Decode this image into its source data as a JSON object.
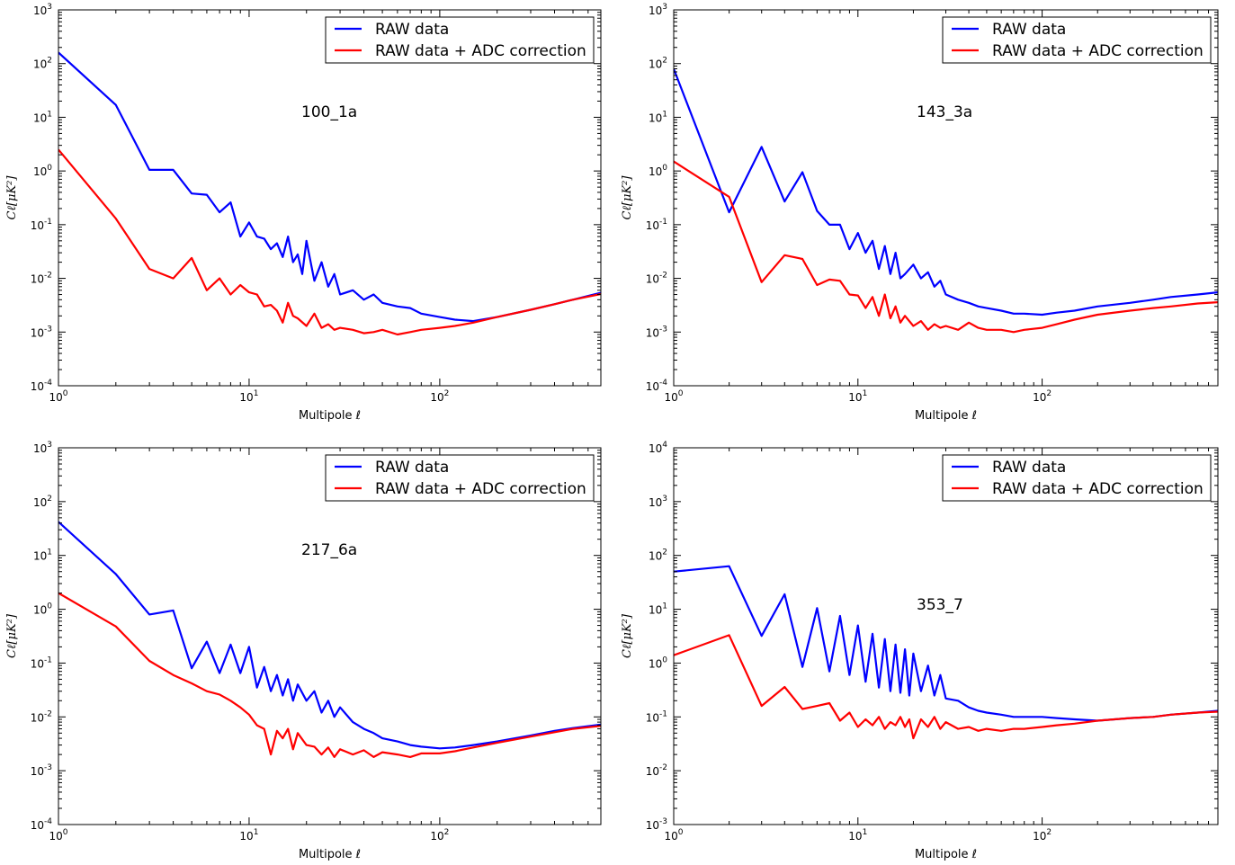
{
  "figure": {
    "series_colors": {
      "raw": "#0000ff",
      "adc": "#ff0000"
    }
  },
  "chart_data": [
    {
      "type": "line",
      "annotation": "100_1a",
      "xlabel": "Multipole ℓ",
      "ylabel": "Cℓ[μK²]",
      "xscale": "log",
      "yscale": "log",
      "xlim": [
        1,
        700
      ],
      "ylim": [
        0.0001,
        1000
      ],
      "xticks": [
        1,
        10,
        100
      ],
      "xtick_labels": [
        [
          "10",
          "0"
        ],
        [
          "10",
          "1"
        ],
        [
          "10",
          "2"
        ]
      ],
      "yticks": [
        0.0001,
        0.001,
        0.01,
        0.1,
        1,
        10,
        100,
        1000
      ],
      "ytick_labels": [
        [
          "10",
          "-4"
        ],
        [
          "10",
          "-3"
        ],
        [
          "10",
          "-2"
        ],
        [
          "10",
          "-1"
        ],
        [
          "10",
          "0"
        ],
        [
          "10",
          "1"
        ],
        [
          "10",
          "2"
        ],
        [
          "10",
          "3"
        ]
      ],
      "legend": {
        "position": "top-right",
        "entries": [
          "RAW data",
          "RAW data + ADC correction"
        ]
      },
      "series": [
        {
          "name": "RAW data",
          "color": "#0000ff",
          "x": [
            1,
            2,
            3,
            4,
            5,
            6,
            7,
            8,
            9,
            10,
            11,
            12,
            13,
            14,
            15,
            16,
            17,
            18,
            19,
            20,
            22,
            24,
            26,
            28,
            30,
            35,
            40,
            45,
            50,
            60,
            70,
            80,
            100,
            120,
            150,
            200,
            300,
            400,
            500,
            700
          ],
          "y": [
            160,
            17,
            1.05,
            1.05,
            0.38,
            0.36,
            0.17,
            0.26,
            0.06,
            0.11,
            0.06,
            0.055,
            0.035,
            0.045,
            0.025,
            0.06,
            0.02,
            0.028,
            0.012,
            0.05,
            0.009,
            0.02,
            0.007,
            0.012,
            0.005,
            0.006,
            0.004,
            0.005,
            0.0035,
            0.003,
            0.0028,
            0.0022,
            0.0019,
            0.0017,
            0.0016,
            0.0019,
            0.0026,
            0.0033,
            0.004,
            0.0054
          ]
        },
        {
          "name": "RAW data + ADC correction",
          "color": "#ff0000",
          "x": [
            1,
            2,
            3,
            4,
            5,
            6,
            7,
            8,
            9,
            10,
            11,
            12,
            13,
            14,
            15,
            16,
            17,
            18,
            20,
            22,
            24,
            26,
            28,
            30,
            35,
            40,
            45,
            50,
            60,
            70,
            80,
            100,
            120,
            150,
            200,
            300,
            400,
            500,
            700
          ],
          "y": [
            2.5,
            0.13,
            0.015,
            0.01,
            0.024,
            0.006,
            0.01,
            0.005,
            0.0075,
            0.0055,
            0.005,
            0.003,
            0.0032,
            0.0025,
            0.0015,
            0.0035,
            0.002,
            0.0018,
            0.0013,
            0.0022,
            0.0012,
            0.0014,
            0.0011,
            0.0012,
            0.0011,
            0.00095,
            0.001,
            0.0011,
            0.0009,
            0.001,
            0.0011,
            0.0012,
            0.0013,
            0.0015,
            0.0019,
            0.0026,
            0.0033,
            0.004,
            0.0051
          ]
        }
      ]
    },
    {
      "type": "line",
      "annotation": "143_3a",
      "xlabel": "Multipole ℓ",
      "ylabel": "Cℓ[μK²]",
      "xscale": "log",
      "yscale": "log",
      "xlim": [
        1,
        900
      ],
      "ylim": [
        0.0001,
        1000
      ],
      "xticks": [
        1,
        10,
        100
      ],
      "xtick_labels": [
        [
          "10",
          "0"
        ],
        [
          "10",
          "1"
        ],
        [
          "10",
          "2"
        ]
      ],
      "yticks": [
        0.0001,
        0.001,
        0.01,
        0.1,
        1,
        10,
        100,
        1000
      ],
      "ytick_labels": [
        [
          "10",
          "-4"
        ],
        [
          "10",
          "-3"
        ],
        [
          "10",
          "-2"
        ],
        [
          "10",
          "-1"
        ],
        [
          "10",
          "0"
        ],
        [
          "10",
          "1"
        ],
        [
          "10",
          "2"
        ],
        [
          "10",
          "3"
        ]
      ],
      "legend": {
        "position": "top-right",
        "entries": [
          "RAW data",
          "RAW data + ADC correction"
        ]
      },
      "series": [
        {
          "name": "RAW data",
          "color": "#0000ff",
          "x": [
            1,
            2,
            3,
            4,
            5,
            6,
            7,
            8,
            9,
            10,
            11,
            12,
            13,
            14,
            15,
            16,
            17,
            18,
            20,
            22,
            24,
            26,
            28,
            30,
            35,
            40,
            45,
            50,
            60,
            70,
            80,
            100,
            120,
            150,
            200,
            300,
            400,
            500,
            700,
            900
          ],
          "y": [
            80,
            0.17,
            2.8,
            0.27,
            0.95,
            0.18,
            0.1,
            0.1,
            0.035,
            0.07,
            0.03,
            0.05,
            0.015,
            0.04,
            0.012,
            0.03,
            0.01,
            0.012,
            0.018,
            0.01,
            0.013,
            0.007,
            0.009,
            0.005,
            0.004,
            0.0035,
            0.003,
            0.0028,
            0.0025,
            0.0022,
            0.0022,
            0.0021,
            0.0023,
            0.0025,
            0.003,
            0.0035,
            0.004,
            0.0045,
            0.005,
            0.0055
          ]
        },
        {
          "name": "RAW data + ADC correction",
          "color": "#ff0000",
          "x": [
            1,
            2,
            3,
            4,
            5,
            6,
            7,
            8,
            9,
            10,
            11,
            12,
            13,
            14,
            15,
            16,
            17,
            18,
            20,
            22,
            24,
            26,
            28,
            30,
            35,
            40,
            45,
            50,
            60,
            70,
            80,
            100,
            120,
            150,
            200,
            300,
            400,
            500,
            700,
            900
          ],
          "y": [
            1.5,
            0.33,
            0.0085,
            0.027,
            0.023,
            0.0075,
            0.0095,
            0.009,
            0.005,
            0.0048,
            0.0028,
            0.0045,
            0.002,
            0.005,
            0.0018,
            0.003,
            0.0015,
            0.002,
            0.0013,
            0.0016,
            0.0011,
            0.0014,
            0.0012,
            0.0013,
            0.0011,
            0.0015,
            0.0012,
            0.0011,
            0.0011,
            0.001,
            0.0011,
            0.0012,
            0.0014,
            0.0017,
            0.0021,
            0.0025,
            0.0028,
            0.003,
            0.0034,
            0.0036
          ]
        }
      ]
    },
    {
      "type": "line",
      "annotation": "217_6a",
      "xlabel": "Multipole ℓ",
      "ylabel": "Cℓ[μK²]",
      "xscale": "log",
      "yscale": "log",
      "xlim": [
        1,
        700
      ],
      "ylim": [
        0.0001,
        1000
      ],
      "xticks": [
        1,
        10,
        100
      ],
      "xtick_labels": [
        [
          "10",
          "0"
        ],
        [
          "10",
          "1"
        ],
        [
          "10",
          "2"
        ]
      ],
      "yticks": [
        0.0001,
        0.001,
        0.01,
        0.1,
        1,
        10,
        100,
        1000
      ],
      "ytick_labels": [
        [
          "10",
          "-4"
        ],
        [
          "10",
          "-3"
        ],
        [
          "10",
          "-2"
        ],
        [
          "10",
          "-1"
        ],
        [
          "10",
          "0"
        ],
        [
          "10",
          "1"
        ],
        [
          "10",
          "2"
        ],
        [
          "10",
          "3"
        ]
      ],
      "legend": {
        "position": "top-right",
        "entries": [
          "RAW data",
          "RAW data + ADC correction"
        ]
      },
      "series": [
        {
          "name": "RAW data",
          "color": "#0000ff",
          "x": [
            1,
            2,
            3,
            4,
            5,
            6,
            7,
            8,
            9,
            10,
            11,
            12,
            13,
            14,
            15,
            16,
            17,
            18,
            20,
            22,
            24,
            26,
            28,
            30,
            35,
            40,
            45,
            50,
            60,
            70,
            80,
            100,
            120,
            150,
            200,
            300,
            400,
            500,
            700
          ],
          "y": [
            42,
            4.5,
            0.8,
            0.95,
            0.08,
            0.25,
            0.065,
            0.22,
            0.065,
            0.2,
            0.035,
            0.085,
            0.03,
            0.06,
            0.025,
            0.05,
            0.02,
            0.04,
            0.02,
            0.03,
            0.012,
            0.02,
            0.01,
            0.015,
            0.008,
            0.006,
            0.005,
            0.004,
            0.0035,
            0.003,
            0.0028,
            0.0026,
            0.0027,
            0.003,
            0.0035,
            0.0045,
            0.0055,
            0.0062,
            0.0072
          ]
        },
        {
          "name": "RAW data + ADC correction",
          "color": "#ff0000",
          "x": [
            1,
            2,
            3,
            4,
            5,
            6,
            7,
            8,
            9,
            10,
            11,
            12,
            13,
            14,
            15,
            16,
            17,
            18,
            20,
            22,
            24,
            26,
            28,
            30,
            35,
            40,
            45,
            50,
            60,
            70,
            80,
            100,
            120,
            150,
            200,
            300,
            400,
            500,
            700
          ],
          "y": [
            2,
            0.48,
            0.11,
            0.06,
            0.042,
            0.03,
            0.026,
            0.02,
            0.015,
            0.011,
            0.007,
            0.006,
            0.002,
            0.0055,
            0.004,
            0.006,
            0.0025,
            0.005,
            0.003,
            0.0028,
            0.002,
            0.0027,
            0.0018,
            0.0025,
            0.002,
            0.0024,
            0.0018,
            0.0022,
            0.002,
            0.0018,
            0.0021,
            0.0021,
            0.0023,
            0.0027,
            0.0033,
            0.0043,
            0.0052,
            0.006,
            0.0068
          ]
        }
      ]
    },
    {
      "type": "line",
      "annotation": "353_7",
      "xlabel": "Multipole ℓ",
      "ylabel": "Cℓ[μK²]",
      "xscale": "log",
      "yscale": "log",
      "xlim": [
        1,
        900
      ],
      "ylim": [
        0.001,
        10000
      ],
      "xticks": [
        1,
        10,
        100
      ],
      "xtick_labels": [
        [
          "10",
          "0"
        ],
        [
          "10",
          "1"
        ],
        [
          "10",
          "2"
        ]
      ],
      "yticks": [
        0.001,
        0.01,
        0.1,
        1,
        10,
        100,
        1000,
        10000
      ],
      "ytick_labels": [
        [
          "10",
          "-3"
        ],
        [
          "10",
          "-2"
        ],
        [
          "10",
          "-1"
        ],
        [
          "10",
          "0"
        ],
        [
          "10",
          "1"
        ],
        [
          "10",
          "2"
        ],
        [
          "10",
          "3"
        ],
        [
          "10",
          "4"
        ]
      ],
      "legend": {
        "position": "top-right",
        "entries": [
          "RAW data",
          "RAW data + ADC correction"
        ]
      },
      "series": [
        {
          "name": "RAW data",
          "color": "#0000ff",
          "x": [
            1,
            2,
            3,
            4,
            5,
            6,
            7,
            8,
            9,
            10,
            11,
            12,
            13,
            14,
            15,
            16,
            17,
            18,
            19,
            20,
            22,
            24,
            26,
            28,
            30,
            35,
            40,
            45,
            50,
            60,
            70,
            80,
            100,
            120,
            150,
            200,
            300,
            400,
            500,
            700,
            900
          ],
          "y": [
            50,
            63,
            3.2,
            19,
            0.85,
            10.5,
            0.7,
            7.5,
            0.6,
            5,
            0.45,
            3.5,
            0.35,
            2.8,
            0.3,
            2.2,
            0.28,
            1.8,
            0.25,
            1.5,
            0.3,
            0.9,
            0.25,
            0.6,
            0.22,
            0.2,
            0.15,
            0.13,
            0.12,
            0.11,
            0.1,
            0.1,
            0.1,
            0.095,
            0.09,
            0.085,
            0.095,
            0.1,
            0.11,
            0.12,
            0.13
          ]
        },
        {
          "name": "RAW data + ADC correction",
          "color": "#ff0000",
          "x": [
            1,
            2,
            3,
            4,
            5,
            6,
            7,
            8,
            9,
            10,
            11,
            12,
            13,
            14,
            15,
            16,
            17,
            18,
            19,
            20,
            22,
            24,
            26,
            28,
            30,
            35,
            40,
            45,
            50,
            60,
            70,
            80,
            100,
            120,
            150,
            200,
            300,
            400,
            500,
            700,
            900
          ],
          "y": [
            1.4,
            3.3,
            0.16,
            0.36,
            0.14,
            0.16,
            0.18,
            0.085,
            0.12,
            0.065,
            0.09,
            0.07,
            0.1,
            0.06,
            0.08,
            0.07,
            0.1,
            0.065,
            0.09,
            0.04,
            0.09,
            0.065,
            0.1,
            0.06,
            0.08,
            0.06,
            0.065,
            0.055,
            0.06,
            0.055,
            0.06,
            0.06,
            0.065,
            0.07,
            0.075,
            0.085,
            0.095,
            0.1,
            0.11,
            0.12,
            0.125
          ]
        }
      ]
    }
  ]
}
